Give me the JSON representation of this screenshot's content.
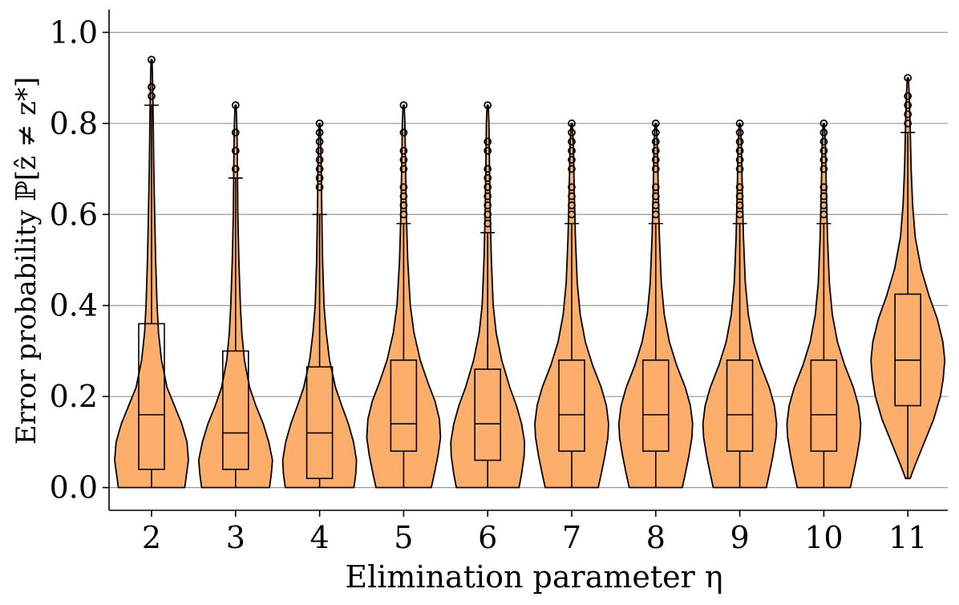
{
  "chart_data": {
    "type": "violin",
    "title": "",
    "xlabel": "Elimination parameter η",
    "ylabel": "Error probability ℙ[ẑ ≠ z*]",
    "ylim": [
      -0.05,
      1.05
    ],
    "yticks": [
      0.0,
      0.2,
      0.4,
      0.6,
      0.8,
      1.0
    ],
    "ytick_labels": [
      "0.0",
      "0.2",
      "0.4",
      "0.6",
      "0.8",
      "1.0"
    ],
    "grid": "horizontal",
    "fill_color": "#fdae6b",
    "edge_color": "#000000",
    "categories": [
      "2",
      "3",
      "4",
      "5",
      "6",
      "7",
      "8",
      "9",
      "10",
      "11"
    ],
    "groups": [
      {
        "eta": "2",
        "min": 0.0,
        "q1": 0.04,
        "median": 0.16,
        "q3": 0.36,
        "whisker_high": 0.84,
        "outliers": [
          0.86,
          0.88,
          0.94
        ],
        "density": [
          [
            0.0,
            0.9
          ],
          [
            0.03,
            0.95
          ],
          [
            0.06,
            1.0
          ],
          [
            0.1,
            0.96
          ],
          [
            0.14,
            0.82
          ],
          [
            0.18,
            0.62
          ],
          [
            0.22,
            0.42
          ],
          [
            0.28,
            0.27
          ],
          [
            0.34,
            0.19
          ],
          [
            0.4,
            0.15
          ],
          [
            0.5,
            0.11
          ],
          [
            0.6,
            0.085
          ],
          [
            0.7,
            0.06
          ],
          [
            0.8,
            0.045
          ],
          [
            0.88,
            0.03
          ],
          [
            0.94,
            0.015
          ]
        ]
      },
      {
        "eta": "3",
        "min": 0.0,
        "q1": 0.04,
        "median": 0.12,
        "q3": 0.3,
        "whisker_high": 0.68,
        "outliers": [
          0.7,
          0.74,
          0.78,
          0.84
        ],
        "density": [
          [
            0.0,
            0.92
          ],
          [
            0.03,
            0.97
          ],
          [
            0.06,
            1.0
          ],
          [
            0.1,
            0.9
          ],
          [
            0.14,
            0.75
          ],
          [
            0.18,
            0.55
          ],
          [
            0.22,
            0.38
          ],
          [
            0.28,
            0.24
          ],
          [
            0.34,
            0.17
          ],
          [
            0.4,
            0.13
          ],
          [
            0.5,
            0.09
          ],
          [
            0.6,
            0.06
          ],
          [
            0.7,
            0.05
          ],
          [
            0.78,
            0.04
          ],
          [
            0.84,
            0.015
          ]
        ]
      },
      {
        "eta": "4",
        "min": 0.0,
        "q1": 0.02,
        "median": 0.12,
        "q3": 0.265,
        "whisker_high": 0.6,
        "outliers": [
          0.66,
          0.68,
          0.7,
          0.72,
          0.74,
          0.76,
          0.78,
          0.8
        ],
        "density": [
          [
            0.0,
            0.93
          ],
          [
            0.03,
            0.98
          ],
          [
            0.06,
            1.0
          ],
          [
            0.1,
            0.92
          ],
          [
            0.14,
            0.78
          ],
          [
            0.18,
            0.6
          ],
          [
            0.22,
            0.43
          ],
          [
            0.28,
            0.27
          ],
          [
            0.34,
            0.18
          ],
          [
            0.4,
            0.12
          ],
          [
            0.5,
            0.08
          ],
          [
            0.6,
            0.06
          ],
          [
            0.7,
            0.045
          ],
          [
            0.8,
            0.015
          ]
        ]
      },
      {
        "eta": "5",
        "min": 0.0,
        "q1": 0.08,
        "median": 0.14,
        "q3": 0.28,
        "whisker_high": 0.58,
        "outliers": [
          0.6,
          0.62,
          0.64,
          0.66,
          0.7,
          0.72,
          0.74,
          0.78,
          0.84
        ],
        "density": [
          [
            0.0,
            0.75
          ],
          [
            0.03,
            0.83
          ],
          [
            0.07,
            0.93
          ],
          [
            0.11,
            1.0
          ],
          [
            0.15,
            0.97
          ],
          [
            0.19,
            0.85
          ],
          [
            0.23,
            0.66
          ],
          [
            0.28,
            0.45
          ],
          [
            0.34,
            0.28
          ],
          [
            0.4,
            0.18
          ],
          [
            0.5,
            0.11
          ],
          [
            0.6,
            0.075
          ],
          [
            0.7,
            0.055
          ],
          [
            0.8,
            0.035
          ],
          [
            0.84,
            0.015
          ]
        ]
      },
      {
        "eta": "6",
        "min": 0.0,
        "q1": 0.06,
        "median": 0.14,
        "q3": 0.26,
        "whisker_high": 0.56,
        "outliers": [
          0.58,
          0.6,
          0.62,
          0.64,
          0.66,
          0.68,
          0.7,
          0.74,
          0.76,
          0.84
        ],
        "density": [
          [
            0.0,
            0.85
          ],
          [
            0.03,
            0.92
          ],
          [
            0.07,
            0.99
          ],
          [
            0.1,
            1.0
          ],
          [
            0.14,
            0.92
          ],
          [
            0.18,
            0.78
          ],
          [
            0.22,
            0.6
          ],
          [
            0.28,
            0.38
          ],
          [
            0.34,
            0.23
          ],
          [
            0.4,
            0.15
          ],
          [
            0.5,
            0.1
          ],
          [
            0.6,
            0.07
          ],
          [
            0.7,
            0.05
          ],
          [
            0.8,
            0.035
          ],
          [
            0.84,
            0.015
          ]
        ]
      },
      {
        "eta": "7",
        "min": 0.0,
        "q1": 0.08,
        "median": 0.16,
        "q3": 0.28,
        "whisker_high": 0.58,
        "outliers": [
          0.6,
          0.62,
          0.64,
          0.66,
          0.7,
          0.72,
          0.74,
          0.76,
          0.78,
          0.8
        ],
        "density": [
          [
            0.0,
            0.72
          ],
          [
            0.03,
            0.8
          ],
          [
            0.07,
            0.9
          ],
          [
            0.11,
            0.98
          ],
          [
            0.14,
            1.0
          ],
          [
            0.18,
            0.94
          ],
          [
            0.22,
            0.8
          ],
          [
            0.27,
            0.56
          ],
          [
            0.32,
            0.37
          ],
          [
            0.38,
            0.23
          ],
          [
            0.45,
            0.15
          ],
          [
            0.55,
            0.1
          ],
          [
            0.65,
            0.07
          ],
          [
            0.75,
            0.045
          ],
          [
            0.8,
            0.015
          ]
        ]
      },
      {
        "eta": "8",
        "min": 0.0,
        "q1": 0.08,
        "median": 0.16,
        "q3": 0.28,
        "whisker_high": 0.58,
        "outliers": [
          0.6,
          0.62,
          0.64,
          0.66,
          0.7,
          0.72,
          0.74,
          0.76,
          0.78,
          0.8
        ],
        "density": [
          [
            0.0,
            0.72
          ],
          [
            0.03,
            0.8
          ],
          [
            0.07,
            0.9
          ],
          [
            0.11,
            0.98
          ],
          [
            0.14,
            1.0
          ],
          [
            0.18,
            0.94
          ],
          [
            0.22,
            0.8
          ],
          [
            0.27,
            0.56
          ],
          [
            0.32,
            0.37
          ],
          [
            0.38,
            0.23
          ],
          [
            0.45,
            0.15
          ],
          [
            0.55,
            0.1
          ],
          [
            0.65,
            0.07
          ],
          [
            0.75,
            0.045
          ],
          [
            0.8,
            0.015
          ]
        ]
      },
      {
        "eta": "9",
        "min": 0.0,
        "q1": 0.08,
        "median": 0.16,
        "q3": 0.28,
        "whisker_high": 0.58,
        "outliers": [
          0.6,
          0.62,
          0.64,
          0.66,
          0.7,
          0.72,
          0.74,
          0.76,
          0.78,
          0.8
        ],
        "density": [
          [
            0.0,
            0.72
          ],
          [
            0.03,
            0.8
          ],
          [
            0.07,
            0.9
          ],
          [
            0.11,
            0.98
          ],
          [
            0.14,
            1.0
          ],
          [
            0.18,
            0.94
          ],
          [
            0.22,
            0.8
          ],
          [
            0.27,
            0.56
          ],
          [
            0.32,
            0.37
          ],
          [
            0.38,
            0.23
          ],
          [
            0.45,
            0.15
          ],
          [
            0.55,
            0.1
          ],
          [
            0.65,
            0.07
          ],
          [
            0.75,
            0.045
          ],
          [
            0.8,
            0.015
          ]
        ]
      },
      {
        "eta": "10",
        "min": 0.0,
        "q1": 0.08,
        "median": 0.16,
        "q3": 0.28,
        "whisker_high": 0.58,
        "outliers": [
          0.6,
          0.62,
          0.64,
          0.66,
          0.7,
          0.72,
          0.74,
          0.76,
          0.78,
          0.8
        ],
        "density": [
          [
            0.0,
            0.72
          ],
          [
            0.03,
            0.8
          ],
          [
            0.07,
            0.9
          ],
          [
            0.11,
            0.98
          ],
          [
            0.14,
            1.0
          ],
          [
            0.18,
            0.94
          ],
          [
            0.22,
            0.8
          ],
          [
            0.27,
            0.56
          ],
          [
            0.32,
            0.37
          ],
          [
            0.38,
            0.23
          ],
          [
            0.45,
            0.15
          ],
          [
            0.55,
            0.1
          ],
          [
            0.65,
            0.07
          ],
          [
            0.75,
            0.045
          ],
          [
            0.8,
            0.015
          ]
        ]
      },
      {
        "eta": "11",
        "min": 0.02,
        "q1": 0.18,
        "median": 0.28,
        "q3": 0.425,
        "whisker_high": 0.78,
        "outliers": [
          0.8,
          0.82,
          0.84,
          0.86,
          0.9
        ],
        "density": [
          [
            0.02,
            0.06
          ],
          [
            0.05,
            0.2
          ],
          [
            0.1,
            0.45
          ],
          [
            0.15,
            0.7
          ],
          [
            0.2,
            0.88
          ],
          [
            0.24,
            0.96
          ],
          [
            0.28,
            1.0
          ],
          [
            0.32,
            0.95
          ],
          [
            0.37,
            0.8
          ],
          [
            0.42,
            0.58
          ],
          [
            0.48,
            0.36
          ],
          [
            0.55,
            0.2
          ],
          [
            0.62,
            0.13
          ],
          [
            0.7,
            0.09
          ],
          [
            0.8,
            0.06
          ],
          [
            0.86,
            0.04
          ],
          [
            0.9,
            0.015
          ]
        ]
      }
    ]
  }
}
